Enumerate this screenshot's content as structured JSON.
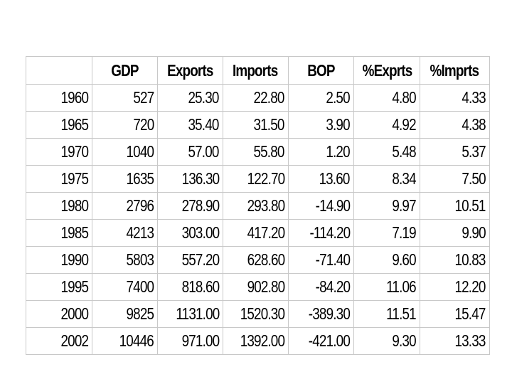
{
  "table": {
    "headers": [
      "",
      "GDP",
      "Exports",
      "Imports",
      "BOP",
      "%Exprts",
      "%Imprts"
    ],
    "rows": [
      [
        "1960",
        "527",
        "25.30",
        "22.80",
        "2.50",
        "4.80",
        "4.33"
      ],
      [
        "1965",
        "720",
        "35.40",
        "31.50",
        "3.90",
        "4.92",
        "4.38"
      ],
      [
        "1970",
        "1040",
        "57.00",
        "55.80",
        "1.20",
        "5.48",
        "5.37"
      ],
      [
        "1975",
        "1635",
        "136.30",
        "122.70",
        "13.60",
        "8.34",
        "7.50"
      ],
      [
        "1980",
        "2796",
        "278.90",
        "293.80",
        "-14.90",
        "9.97",
        "10.51"
      ],
      [
        "1985",
        "4213",
        "303.00",
        "417.20",
        "-114.20",
        "7.19",
        "9.90"
      ],
      [
        "1990",
        "5803",
        "557.20",
        "628.60",
        "-71.40",
        "9.60",
        "10.83"
      ],
      [
        "1995",
        "7400",
        "818.60",
        "902.80",
        "-84.20",
        "11.06",
        "12.20"
      ],
      [
        "2000",
        "9825",
        "1131.00",
        "1520.30",
        "-389.30",
        "11.51",
        "15.47"
      ],
      [
        "2002",
        "10446",
        "971.00",
        "1392.00",
        "-421.00",
        "9.30",
        "13.33"
      ]
    ]
  }
}
